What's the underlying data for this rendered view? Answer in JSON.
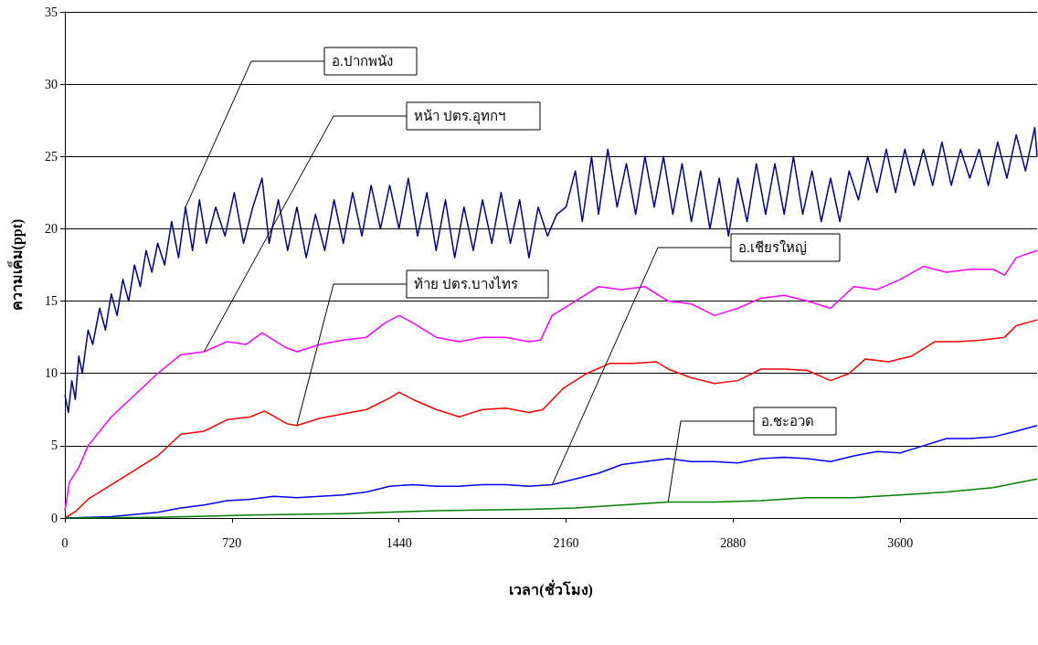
{
  "chart_data": {
    "type": "line",
    "xlabel": "เวลา(ชั่วโมง)",
    "ylabel": "ความเค็ม(ppt)",
    "xlim": [
      0,
      4190
    ],
    "xticks": [
      0,
      720,
      1440,
      2160,
      2880,
      3600
    ],
    "ylim": [
      0,
      35
    ],
    "yticks": [
      0,
      5,
      10,
      15,
      20,
      25,
      30,
      35
    ],
    "grid": "y",
    "legend": false,
    "marker": "none",
    "line_style": "solid",
    "series": [
      {
        "name": "อ.ปากพนัง",
        "color": "#000080",
        "x": [
          0,
          15,
          30,
          45,
          60,
          75,
          100,
          120,
          150,
          175,
          200,
          225,
          250,
          275,
          300,
          325,
          350,
          375,
          400,
          430,
          460,
          490,
          520,
          550,
          580,
          610,
          650,
          690,
          730,
          770,
          810,
          850,
          880,
          920,
          960,
          1000,
          1040,
          1080,
          1120,
          1160,
          1200,
          1240,
          1280,
          1320,
          1360,
          1400,
          1440,
          1480,
          1520,
          1560,
          1600,
          1640,
          1680,
          1720,
          1760,
          1800,
          1840,
          1880,
          1920,
          1960,
          2000,
          2040,
          2080,
          2120,
          2160,
          2200,
          2230,
          2270,
          2300,
          2340,
          2380,
          2420,
          2460,
          2500,
          2540,
          2580,
          2620,
          2660,
          2700,
          2740,
          2780,
          2820,
          2860,
          2900,
          2940,
          2980,
          3020,
          3060,
          3100,
          3140,
          3180,
          3220,
          3260,
          3300,
          3340,
          3380,
          3420,
          3460,
          3500,
          3540,
          3580,
          3620,
          3660,
          3700,
          3740,
          3780,
          3820,
          3860,
          3900,
          3940,
          3980,
          4020,
          4060,
          4100,
          4140,
          4180,
          4190
        ],
        "values": [
          8.5,
          7.3,
          9.5,
          8.2,
          11.2,
          10,
          13,
          12,
          14.5,
          13,
          15.5,
          14,
          16.5,
          15,
          17.5,
          16,
          18.5,
          17,
          19,
          17.5,
          20.5,
          18,
          21.5,
          18.5,
          22,
          19,
          21.5,
          19.5,
          22.5,
          19,
          21.5,
          23.5,
          19,
          22,
          18.5,
          21.5,
          18,
          21,
          18.5,
          22,
          19,
          22.5,
          19.5,
          23,
          20,
          23,
          20,
          23.5,
          19.5,
          22.5,
          18.5,
          22,
          18,
          21.5,
          18.5,
          22,
          19,
          22.5,
          19,
          22,
          18,
          21.5,
          19.5,
          21,
          21.5,
          24,
          20.5,
          25,
          21,
          25.5,
          21.5,
          24.5,
          21,
          25,
          21.5,
          25,
          21,
          24.5,
          20.5,
          24,
          20,
          23.5,
          19.5,
          23.5,
          20.5,
          24.5,
          21,
          24.5,
          21,
          25,
          21,
          24,
          20.5,
          23.5,
          20.5,
          24,
          22,
          25,
          22.5,
          25.5,
          22.5,
          25.5,
          23,
          25.5,
          23,
          26,
          23,
          25.5,
          23.5,
          25.5,
          23,
          26,
          23.5,
          26.5,
          24,
          27,
          25
        ]
      },
      {
        "name": "หน้า ปตร.อุทกฯ",
        "color": "#ff00ff",
        "x": [
          0,
          20,
          60,
          100,
          200,
          300,
          400,
          500,
          600,
          700,
          780,
          850,
          950,
          1000,
          1100,
          1200,
          1300,
          1380,
          1440,
          1500,
          1600,
          1700,
          1800,
          1900,
          2000,
          2050,
          2100,
          2200,
          2300,
          2400,
          2500,
          2600,
          2700,
          2800,
          2900,
          3000,
          3100,
          3200,
          3300,
          3400,
          3500,
          3600,
          3700,
          3800,
          3900,
          4000,
          4050,
          4100,
          4190
        ],
        "values": [
          0.5,
          2.5,
          3.5,
          5,
          7,
          8.5,
          10,
          11.3,
          11.5,
          12.2,
          12,
          12.8,
          11.8,
          11.5,
          12,
          12.3,
          12.5,
          13.5,
          14,
          13.5,
          12.5,
          12.2,
          12.5,
          12.5,
          12.2,
          12.3,
          14,
          15,
          16,
          15.8,
          16,
          15,
          14.8,
          14,
          14.5,
          15.2,
          15.4,
          15,
          14.5,
          16,
          15.8,
          16.5,
          17.4,
          17,
          17.2,
          17.2,
          16.8,
          18,
          18.5
        ]
      },
      {
        "name": "ท้าย ปตร.บางไทร",
        "color": "#ff0000",
        "x": [
          0,
          50,
          100,
          200,
          300,
          400,
          500,
          600,
          700,
          800,
          860,
          960,
          1000,
          1100,
          1200,
          1300,
          1400,
          1440,
          1500,
          1600,
          1700,
          1800,
          1900,
          2000,
          2060,
          2150,
          2250,
          2350,
          2450,
          2550,
          2600,
          2700,
          2800,
          2900,
          3000,
          3100,
          3200,
          3300,
          3380,
          3450,
          3550,
          3650,
          3750,
          3850,
          3950,
          4050,
          4100,
          4190
        ],
        "values": [
          0,
          0.5,
          1.3,
          2.3,
          3.3,
          4.3,
          5.8,
          6,
          6.8,
          7,
          7.4,
          6.5,
          6.4,
          6.9,
          7.2,
          7.5,
          8.3,
          8.7,
          8.2,
          7.5,
          7,
          7.5,
          7.6,
          7.3,
          7.5,
          9,
          10,
          10.7,
          10.7,
          10.8,
          10.3,
          9.7,
          9.3,
          9.5,
          10.3,
          10.3,
          10.2,
          9.5,
          10,
          11,
          10.8,
          11.2,
          12.2,
          12.2,
          12.3,
          12.5,
          13.3,
          13.7
        ]
      },
      {
        "name": "อ.เชียรใหญ่",
        "color": "#0000ff",
        "x": [
          0,
          200,
          400,
          500,
          600,
          700,
          800,
          900,
          1000,
          1100,
          1200,
          1300,
          1400,
          1500,
          1600,
          1700,
          1800,
          1900,
          2000,
          2100,
          2200,
          2300,
          2400,
          2500,
          2600,
          2700,
          2800,
          2900,
          3000,
          3100,
          3200,
          3300,
          3400,
          3500,
          3600,
          3700,
          3800,
          3900,
          4000,
          4100,
          4190
        ],
        "values": [
          0,
          0.1,
          0.4,
          0.7,
          0.9,
          1.2,
          1.3,
          1.5,
          1.4,
          1.5,
          1.6,
          1.8,
          2.2,
          2.3,
          2.2,
          2.2,
          2.3,
          2.3,
          2.2,
          2.3,
          2.7,
          3.1,
          3.7,
          3.9,
          4.1,
          3.9,
          3.9,
          3.8,
          4.1,
          4.2,
          4.1,
          3.9,
          4.3,
          4.6,
          4.5,
          5,
          5.5,
          5.5,
          5.6,
          6,
          6.4
        ]
      },
      {
        "name": "อ.ชะอวด",
        "color": "#008000",
        "x": [
          0,
          400,
          800,
          1200,
          1600,
          2000,
          2200,
          2400,
          2600,
          2800,
          3000,
          3200,
          3400,
          3600,
          3800,
          4000,
          4190
        ],
        "values": [
          0,
          0.05,
          0.2,
          0.3,
          0.5,
          0.6,
          0.7,
          0.9,
          1.1,
          1.1,
          1.2,
          1.4,
          1.4,
          1.6,
          1.8,
          2.1,
          2.7
        ]
      }
    ]
  }
}
